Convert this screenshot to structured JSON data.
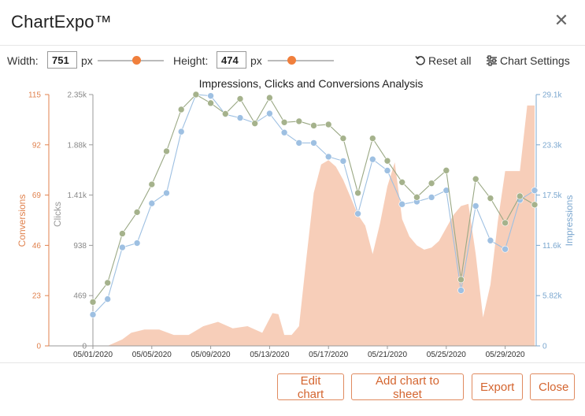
{
  "app": {
    "title": "ChartExpo™",
    "close_icon": "close-icon"
  },
  "toolbar": {
    "width_label": "Width:",
    "width_value": "751",
    "width_unit": "px",
    "height_label": "Height:",
    "height_value": "474",
    "height_unit": "px",
    "reset_label": "Reset all",
    "settings_label": "Chart Settings"
  },
  "footer": {
    "edit_label": "Edit chart",
    "add_label": "Add chart to sheet",
    "export_label": "Export",
    "close_label": "Close"
  },
  "colors": {
    "conversions": "#f3b99b",
    "conversions_axis": "#e0824e",
    "clicks": "#a5b28c",
    "clicks_line": "#9aa884",
    "impressions": "#9ec0e2",
    "impressions_axis": "#7ba7cf"
  },
  "chart_data": {
    "type": "line",
    "title": "Impressions, Clicks and Conversions Analysis",
    "x_labels": [
      "05/01/2020",
      "05/05/2020",
      "05/09/2020",
      "05/13/2020",
      "05/17/2020",
      "05/21/2020",
      "05/25/2020",
      "05/29/2020"
    ],
    "y_left": {
      "label": "Conversions",
      "ticks": [
        "0",
        "23",
        "46",
        "69",
        "92",
        "115"
      ],
      "range": [
        0,
        115
      ]
    },
    "y_clicks": {
      "label": "Clicks",
      "ticks": [
        "0",
        "469",
        "938",
        "1.41k",
        "1.88k",
        "2.35k"
      ],
      "range": [
        0,
        2350
      ]
    },
    "y_right": {
      "label": "Impressions",
      "ticks": [
        "0",
        "5.82k",
        "11.6k",
        "17.5k",
        "23.3k",
        "29.1k"
      ],
      "range": [
        0,
        29100
      ]
    },
    "conversions_area": {
      "t": [
        0,
        1,
        2,
        2.6,
        3.5,
        4.5,
        5.5,
        6.5,
        7.5,
        8.5,
        9.5,
        10.5,
        11.5,
        12.2,
        12.6,
        13,
        13.5,
        14,
        14.5,
        15,
        15.5,
        16,
        16.5,
        17,
        17.5,
        18,
        18.5,
        19,
        19.5,
        20,
        20.5,
        21,
        21.5,
        22,
        22.5,
        23,
        23.5,
        24,
        24.5,
        25,
        25.5,
        26,
        26.5,
        27,
        27.5,
        28,
        28.5,
        29,
        29.5,
        30
      ],
      "values": [
        0,
        0,
        3,
        6,
        7.5,
        7.5,
        5,
        5,
        9,
        11,
        8,
        9,
        6,
        15,
        14.5,
        5,
        5,
        9,
        40,
        70,
        83,
        85,
        82,
        76,
        68,
        60,
        55,
        42,
        56,
        73,
        84,
        58,
        50,
        46,
        44,
        45,
        48,
        54,
        60,
        64,
        65,
        42,
        13,
        28,
        57,
        80,
        80,
        80,
        110,
        110
      ]
    },
    "series": [
      {
        "name": "Clicks",
        "values": [
          410,
          590,
          1050,
          1250,
          1510,
          1820,
          2210,
          2350,
          2270,
          2170,
          2310,
          2080,
          2320,
          2090,
          2100,
          2060,
          2070,
          1940,
          1430,
          1940,
          1730,
          1530,
          1390,
          1520,
          1640,
          620,
          1560,
          1380,
          1150,
          1400,
          1320
        ]
      },
      {
        "name": "Impressions",
        "values": [
          3620,
          5420,
          11400,
          11900,
          16500,
          17700,
          24800,
          29100,
          28950,
          26800,
          26400,
          25800,
          26900,
          24700,
          23500,
          23500,
          21900,
          21400,
          15300,
          21600,
          20300,
          16400,
          16700,
          17200,
          18000,
          6430,
          16200,
          12200,
          11200,
          16900,
          18000
        ]
      }
    ]
  }
}
